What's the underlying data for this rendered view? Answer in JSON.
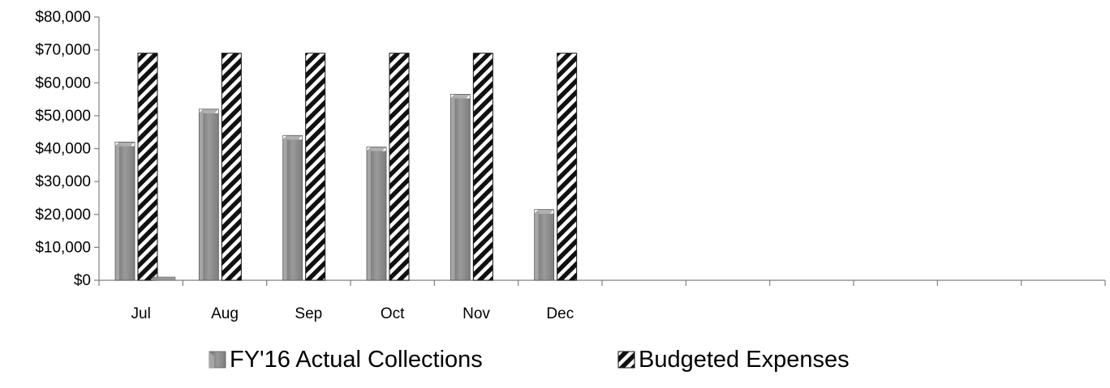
{
  "chart_data": {
    "type": "bar",
    "categories": [
      "Jul",
      "Aug",
      "Sep",
      "Oct",
      "Nov",
      "Dec",
      "",
      "",
      "",
      "",
      "",
      ""
    ],
    "series": [
      {
        "name": "FY'16 Actual Collections",
        "values": [
          42000,
          52000,
          44000,
          40500,
          56500,
          21500,
          null,
          null,
          null,
          null,
          null,
          null
        ],
        "color": "#8c8c8c",
        "pattern": "bevel"
      },
      {
        "name": "Budgeted Expenses",
        "values": [
          69000,
          69000,
          69000,
          69000,
          69000,
          69000,
          null,
          null,
          null,
          null,
          null,
          null
        ],
        "color": "#222222",
        "pattern": "diagonal-stripes"
      }
    ],
    "extra_marks": [
      {
        "category": "Jul",
        "value": 500,
        "note": "small flat bar"
      }
    ],
    "yticks": [
      "$0",
      "$10,000",
      "$20,000",
      "$30,000",
      "$40,000",
      "$50,000",
      "$60,000",
      "$70,000",
      "$80,000"
    ],
    "ylim": [
      0,
      80000
    ],
    "ystep": 10000,
    "grid": false,
    "legend_position": "bottom",
    "title": "",
    "xlabel": "",
    "ylabel": ""
  }
}
